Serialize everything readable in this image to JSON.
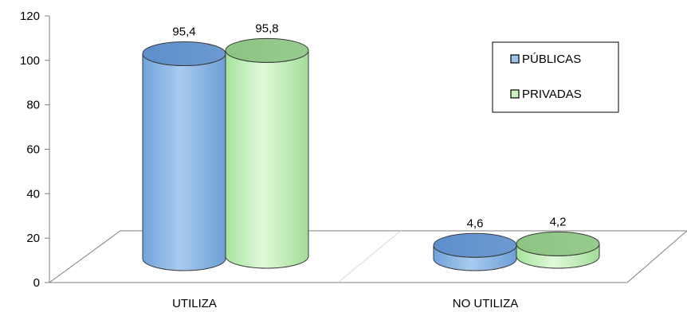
{
  "chart_data": {
    "type": "bar",
    "categories": [
      "UTILIZA",
      "NO UTILIZA"
    ],
    "series": [
      {
        "name": "PÚBLICAS",
        "values": [
          95.4,
          4.6
        ],
        "labels": [
          "95,4",
          "4,6"
        ],
        "color": "#9DC3E6"
      },
      {
        "name": "PRIVADAS",
        "values": [
          95.8,
          4.2
        ],
        "labels": [
          "95,8",
          "4,2"
        ],
        "color": "#C9F2C0"
      }
    ],
    "title": "",
    "xlabel": "",
    "ylabel": "",
    "ylim": [
      0,
      120
    ],
    "yticks": [
      0,
      20,
      40,
      60,
      80,
      100,
      120
    ],
    "ytick_labels": [
      "0",
      "20",
      "40",
      "60",
      "80",
      "100",
      "120"
    ],
    "grid": false,
    "legend_position": "top-right",
    "style": "3d-cylinder"
  }
}
